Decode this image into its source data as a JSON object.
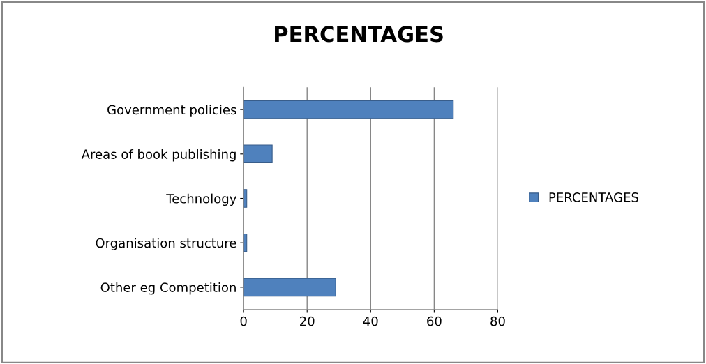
{
  "chart_data": {
    "type": "bar",
    "orientation": "horizontal",
    "title": "PERCENTAGES",
    "categories": [
      "Government policies",
      "Areas of book publishing",
      "Technology",
      "Organisation structure",
      "Other eg Competition"
    ],
    "series": [
      {
        "name": "PERCENTAGES",
        "color": "#4f81bd",
        "values": [
          66,
          9,
          1,
          1,
          29
        ]
      }
    ],
    "xlim": [
      0,
      80
    ],
    "xticks": [
      0,
      20,
      40,
      60,
      80
    ],
    "grid": "x",
    "legend": "right"
  }
}
